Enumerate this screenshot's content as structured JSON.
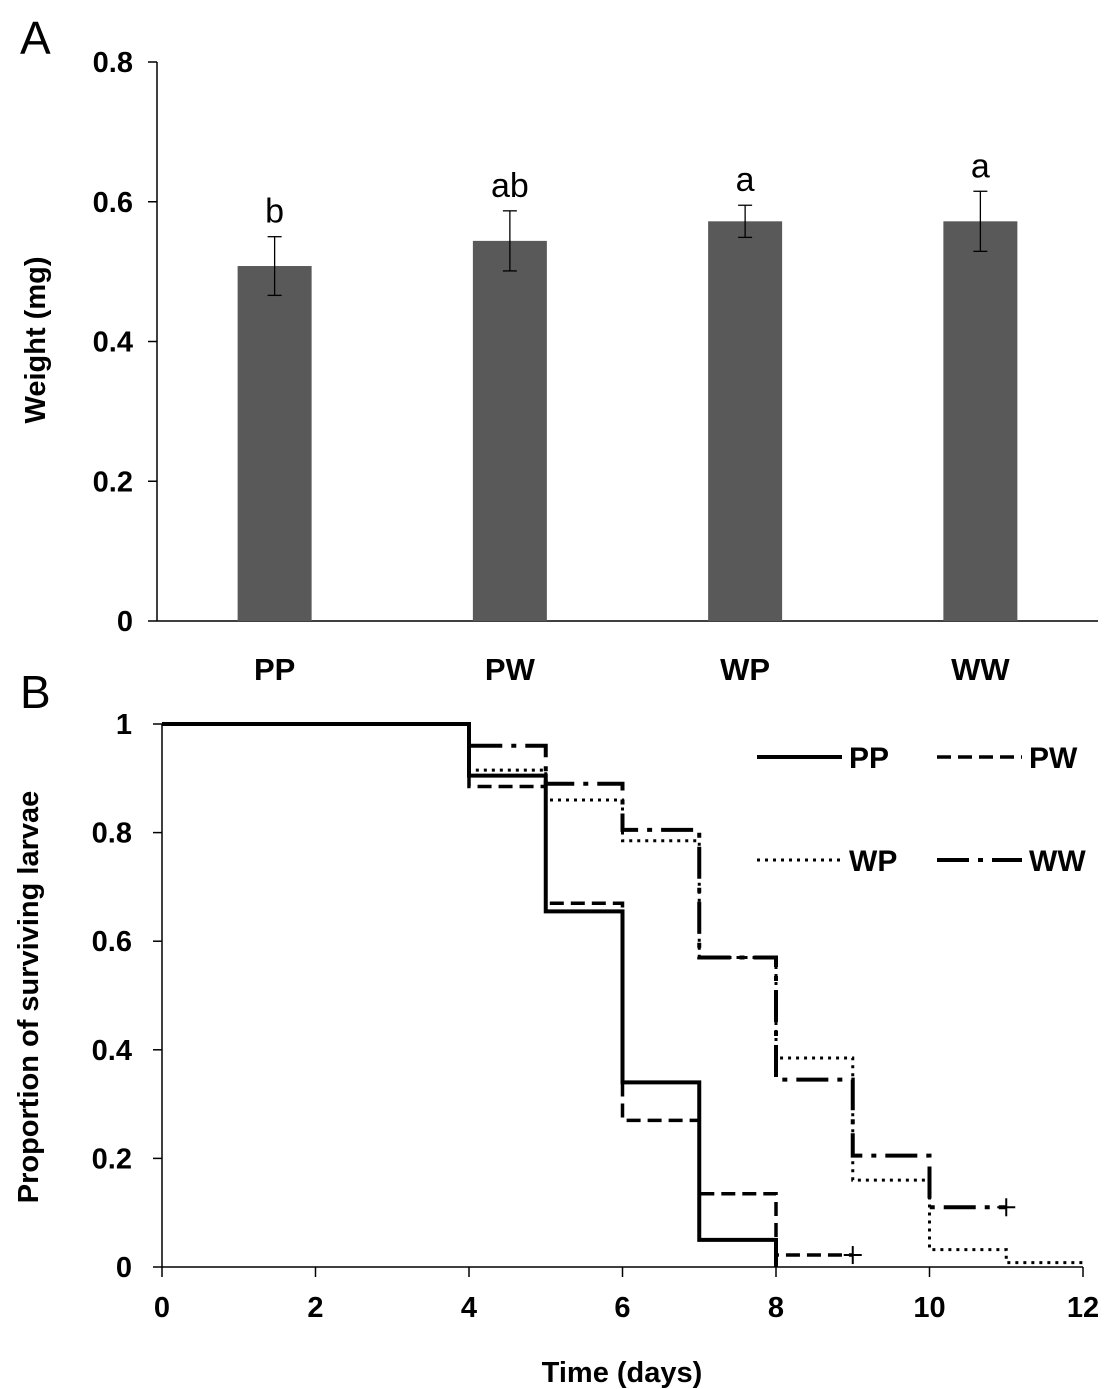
{
  "chart_data": [
    {
      "panel": "A",
      "type": "bar",
      "categories": [
        "PP",
        "PW",
        "WP",
        "WW"
      ],
      "values": [
        0.508,
        0.544,
        0.572,
        0.572
      ],
      "errors": [
        0.042,
        0.043,
        0.023,
        0.043
      ],
      "significance": [
        "b",
        "ab",
        "a",
        "a"
      ],
      "ylabel": "Weight (mg)",
      "xlabel": "",
      "ylim": [
        0,
        0.8
      ],
      "yticks": [
        "0",
        "0.2",
        "0.4",
        "0.6",
        "0.8"
      ],
      "bar_color": "#595959",
      "grid": false
    },
    {
      "panel": "B",
      "type": "line",
      "step": true,
      "xlabel": "Time (days)",
      "ylabel": "Proportion of surviving larvae",
      "xlim": [
        0,
        12
      ],
      "ylim": [
        0,
        1
      ],
      "xticks": [
        "0",
        "2",
        "4",
        "6",
        "8",
        "10",
        "12"
      ],
      "yticks": [
        "0",
        "0.2",
        "0.4",
        "0.6",
        "0.8",
        "1"
      ],
      "legend_position": "top-right",
      "grid": false,
      "series": [
        {
          "name": "PP",
          "style": "solid",
          "x": [
            0,
            4,
            5,
            6,
            7,
            8
          ],
          "y": [
            1,
            0.905,
            0.655,
            0.34,
            0.05,
            0
          ],
          "end": 8,
          "censored": []
        },
        {
          "name": "PW",
          "style": "dashed",
          "x": [
            0,
            4,
            5,
            6,
            7,
            8
          ],
          "y": [
            1,
            0.885,
            0.67,
            0.27,
            0.135,
            0.022
          ],
          "end": 9,
          "censored": [
            [
              9,
              0.022
            ]
          ]
        },
        {
          "name": "WP",
          "style": "dotted",
          "x": [
            0,
            4,
            5,
            6,
            7,
            8,
            9,
            10,
            11
          ],
          "y": [
            1,
            0.915,
            0.86,
            0.785,
            0.57,
            0.385,
            0.16,
            0.032,
            0.008
          ],
          "end": 12,
          "censored": []
        },
        {
          "name": "WW",
          "style": "longdash",
          "x": [
            0,
            4,
            5,
            6,
            7,
            8,
            9,
            10
          ],
          "y": [
            1,
            0.96,
            0.89,
            0.805,
            0.57,
            0.345,
            0.205,
            0.11
          ],
          "end": 11,
          "censored": [
            [
              11,
              0.11
            ]
          ]
        }
      ]
    }
  ]
}
